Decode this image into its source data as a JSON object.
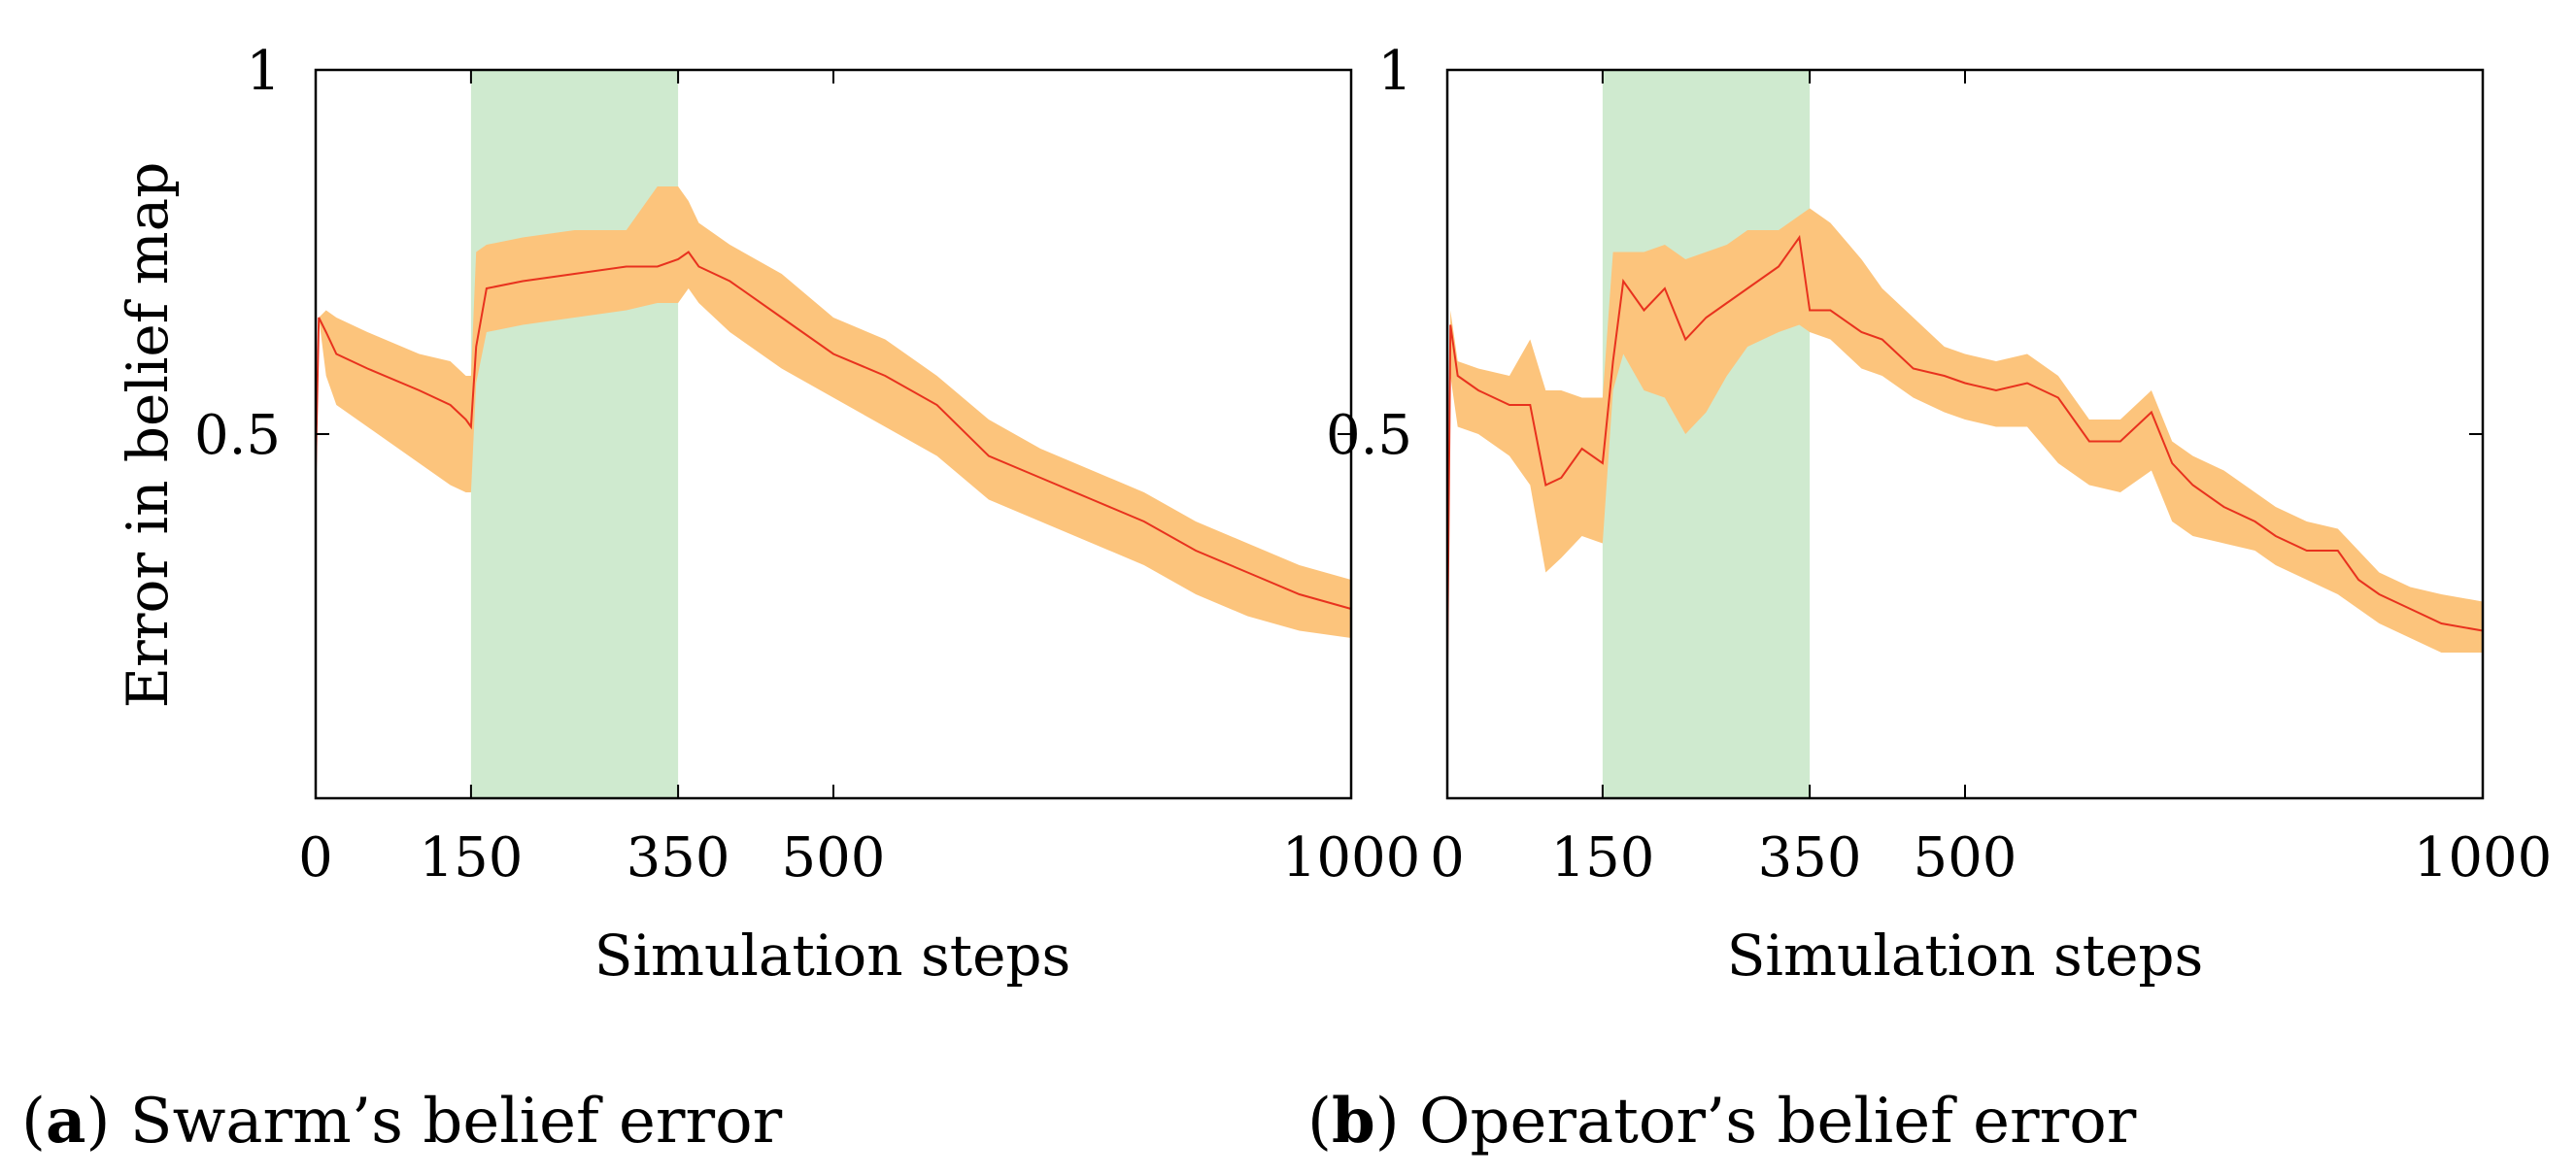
{
  "figure": {
    "captions": [
      {
        "tag": "a",
        "text": "Swarm’s belief error"
      },
      {
        "tag": "b",
        "text": "Operator’s belief error"
      }
    ]
  },
  "colors": {
    "band": "#fcc47c",
    "line": "#e8321e",
    "highlight": "#cfeacf",
    "frame": "#000000"
  },
  "chart_data": [
    {
      "type": "line",
      "title": "",
      "xlabel": "Simulation steps",
      "ylabel": "Error in belief map",
      "xlim": [
        0,
        1000
      ],
      "ylim": [
        0,
        1
      ],
      "xticks": [
        0,
        150,
        350,
        500,
        1000
      ],
      "yticks": [
        0.5,
        1
      ],
      "ytick_labels": [
        "0.5",
        "1"
      ],
      "left_axis_ticks": true,
      "highlight": {
        "x_start": 150,
        "x_end": 350
      },
      "series": [
        {
          "name": "mean",
          "x": [
            0,
            3,
            10,
            20,
            50,
            100,
            130,
            145,
            150,
            155,
            165,
            200,
            250,
            300,
            330,
            350,
            360,
            370,
            400,
            450,
            500,
            550,
            600,
            650,
            700,
            750,
            800,
            850,
            900,
            950,
            1000
          ],
          "y": [
            0.45,
            0.66,
            0.64,
            0.61,
            0.59,
            0.56,
            0.54,
            0.52,
            0.51,
            0.62,
            0.7,
            0.71,
            0.72,
            0.73,
            0.73,
            0.74,
            0.75,
            0.73,
            0.71,
            0.66,
            0.61,
            0.58,
            0.54,
            0.47,
            0.44,
            0.41,
            0.38,
            0.34,
            0.31,
            0.28,
            0.26
          ],
          "lower": [
            0.45,
            0.66,
            0.58,
            0.54,
            0.51,
            0.46,
            0.43,
            0.42,
            0.42,
            0.57,
            0.64,
            0.65,
            0.66,
            0.67,
            0.68,
            0.68,
            0.7,
            0.68,
            0.64,
            0.59,
            0.55,
            0.51,
            0.47,
            0.41,
            0.38,
            0.35,
            0.32,
            0.28,
            0.25,
            0.23,
            0.22
          ],
          "upper": [
            0.45,
            0.66,
            0.67,
            0.66,
            0.64,
            0.61,
            0.6,
            0.58,
            0.58,
            0.75,
            0.76,
            0.77,
            0.78,
            0.78,
            0.84,
            0.84,
            0.82,
            0.79,
            0.76,
            0.72,
            0.66,
            0.63,
            0.58,
            0.52,
            0.48,
            0.45,
            0.42,
            0.38,
            0.35,
            0.32,
            0.3
          ]
        }
      ]
    },
    {
      "type": "line",
      "title": "",
      "xlabel": "Simulation steps",
      "ylabel": "",
      "xlim": [
        0,
        1000
      ],
      "ylim": [
        0,
        1
      ],
      "xticks": [
        0,
        150,
        350,
        500,
        1000
      ],
      "yticks": [
        0.5,
        1
      ],
      "ytick_labels": [
        "0.5",
        "1"
      ],
      "left_axis_ticks": false,
      "highlight": {
        "x_start": 150,
        "x_end": 350
      },
      "series": [
        {
          "name": "mean",
          "x": [
            0,
            3,
            10,
            30,
            60,
            80,
            95,
            110,
            130,
            150,
            160,
            170,
            190,
            210,
            230,
            250,
            270,
            290,
            320,
            340,
            350,
            370,
            400,
            420,
            450,
            480,
            500,
            530,
            560,
            590,
            620,
            650,
            680,
            700,
            720,
            750,
            780,
            800,
            830,
            860,
            880,
            900,
            930,
            960,
            1000
          ],
          "y": [
            0.18,
            0.65,
            0.58,
            0.56,
            0.54,
            0.54,
            0.43,
            0.44,
            0.48,
            0.46,
            0.6,
            0.71,
            0.67,
            0.7,
            0.63,
            0.66,
            0.68,
            0.7,
            0.73,
            0.77,
            0.67,
            0.67,
            0.64,
            0.63,
            0.59,
            0.58,
            0.57,
            0.56,
            0.57,
            0.55,
            0.49,
            0.49,
            0.53,
            0.46,
            0.43,
            0.4,
            0.38,
            0.36,
            0.34,
            0.34,
            0.3,
            0.28,
            0.26,
            0.24,
            0.23
          ],
          "lower": [
            0.18,
            0.58,
            0.51,
            0.5,
            0.47,
            0.43,
            0.31,
            0.33,
            0.36,
            0.35,
            0.56,
            0.61,
            0.56,
            0.55,
            0.5,
            0.53,
            0.58,
            0.62,
            0.64,
            0.65,
            0.64,
            0.63,
            0.59,
            0.58,
            0.55,
            0.53,
            0.52,
            0.51,
            0.51,
            0.46,
            0.43,
            0.42,
            0.45,
            0.38,
            0.36,
            0.35,
            0.34,
            0.32,
            0.3,
            0.28,
            0.26,
            0.24,
            0.22,
            0.2,
            0.2
          ],
          "upper": [
            0.18,
            0.67,
            0.6,
            0.59,
            0.58,
            0.63,
            0.56,
            0.56,
            0.55,
            0.55,
            0.75,
            0.75,
            0.75,
            0.76,
            0.74,
            0.75,
            0.76,
            0.78,
            0.78,
            0.8,
            0.81,
            0.79,
            0.74,
            0.7,
            0.66,
            0.62,
            0.61,
            0.6,
            0.61,
            0.58,
            0.52,
            0.52,
            0.56,
            0.49,
            0.47,
            0.45,
            0.42,
            0.4,
            0.38,
            0.37,
            0.34,
            0.31,
            0.29,
            0.28,
            0.27
          ]
        }
      ]
    }
  ]
}
